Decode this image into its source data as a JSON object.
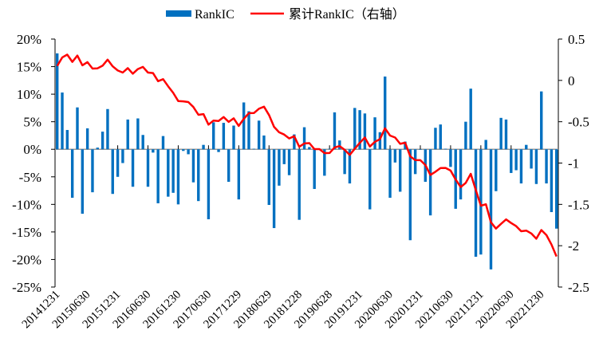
{
  "chart_data": {
    "type": "bar+line",
    "title": "",
    "legend": {
      "position": "top",
      "entries": [
        "RankIC",
        "累计RankIC（右轴）"
      ]
    },
    "colors": {
      "bar": "#0070C0",
      "line": "#FF0000",
      "axis": "#000000",
      "zero_line": "#999999"
    },
    "x_tick_labels": [
      "20141231",
      "20150630",
      "20151231",
      "20160630",
      "20161230",
      "20170630",
      "20171229",
      "20180629",
      "20181228",
      "20190628",
      "20191231",
      "20200630",
      "20201231",
      "20210630",
      "20211231",
      "20220630",
      "20221230"
    ],
    "x_tick_every": 6,
    "left_axis": {
      "ylim": [
        -25,
        20
      ],
      "ticks": [
        20,
        15,
        10,
        5,
        0,
        -5,
        -10,
        -15,
        -20,
        -25
      ],
      "tick_labels": [
        "20%",
        "15%",
        "10%",
        "5%",
        "0%",
        "-5%",
        "-10%",
        "-15%",
        "-20%",
        "-25%"
      ],
      "unit": "%"
    },
    "right_axis": {
      "ylim": [
        -2.5,
        0.5
      ],
      "ticks": [
        0.5,
        0,
        -0.5,
        -1,
        -1.5,
        -2,
        -2.5
      ],
      "tick_labels": [
        "0.5",
        "0",
        "-0.5",
        "-1",
        "-1.5",
        "-2",
        "-2.5"
      ]
    },
    "series": [
      {
        "name": "RankIC",
        "type": "bar",
        "axis": "left",
        "values": [
          17.4,
          10.3,
          3.5,
          -8.8,
          7.6,
          -11.7,
          3.8,
          -7.8,
          0.3,
          3.2,
          7.3,
          -8.1,
          -5.0,
          -2.5,
          5.4,
          -6.8,
          5.6,
          2.6,
          -6.8,
          -0.6,
          -9.8,
          2.4,
          -8.6,
          -7.9,
          -10.0,
          -0.3,
          -0.9,
          -6.0,
          -9.4,
          0.8,
          -12.7,
          4.9,
          -0.5,
          4.8,
          -5.9,
          4.3,
          -9.1,
          8.5,
          6.9,
          0.1,
          5.2,
          2.5,
          -10.1,
          -14.3,
          -6.6,
          -2.7,
          -4.7,
          2.7,
          -12.8,
          4.0,
          0.4,
          -7.2,
          0.0,
          -4.8,
          0.1,
          6.7,
          1.6,
          -4.5,
          -6.2,
          7.5,
          7.1,
          6.5,
          -10.9,
          5.8,
          3.1,
          13.2,
          -8.8,
          -2.4,
          -7.7,
          1.4,
          -16.5,
          -4.5,
          -0.1,
          -5.9,
          -12.0,
          3.9,
          4.5,
          0.1,
          -3.2,
          -10.8,
          -9.1,
          5.0,
          11.0,
          -19.5,
          -19.1,
          1.7,
          -21.8,
          -7.6,
          5.7,
          5.4,
          -4.3,
          -3.8,
          -6.2,
          0.8,
          -3.5,
          -6.3,
          10.5,
          -6.2,
          -11.4,
          -14.4
        ]
      },
      {
        "name": "累计RankIC（右轴）",
        "type": "line",
        "axis": "right",
        "values": [
          0.174,
          0.277,
          0.312,
          0.224,
          0.3,
          0.183,
          0.221,
          0.143,
          0.146,
          0.178,
          0.251,
          0.17,
          0.12,
          0.095,
          0.149,
          0.081,
          0.137,
          0.163,
          0.095,
          0.089,
          -0.009,
          0.015,
          -0.071,
          -0.15,
          -0.25,
          -0.253,
          -0.262,
          -0.322,
          -0.416,
          -0.408,
          -0.535,
          -0.486,
          -0.491,
          -0.443,
          -0.502,
          -0.459,
          -0.55,
          -0.465,
          -0.396,
          -0.395,
          -0.343,
          -0.318,
          -0.419,
          -0.562,
          -0.628,
          -0.655,
          -0.702,
          -0.675,
          -0.803,
          -0.763,
          -0.759,
          -0.831,
          -0.831,
          -0.879,
          -0.878,
          -0.811,
          -0.795,
          -0.84,
          -0.902,
          -0.827,
          -0.756,
          -0.691,
          -0.8,
          -0.742,
          -0.711,
          -0.579,
          -0.667,
          -0.691,
          -0.768,
          -0.754,
          -0.919,
          -0.964,
          -0.965,
          -1.024,
          -1.144,
          -1.105,
          -1.06,
          -1.059,
          -1.091,
          -1.199,
          -1.29,
          -1.24,
          -1.13,
          -1.325,
          -1.516,
          -1.499,
          -1.717,
          -1.793,
          -1.736,
          -1.682,
          -1.725,
          -1.763,
          -1.825,
          -1.817,
          -1.852,
          -1.915,
          -1.81,
          -1.872,
          -1.986,
          -2.13
        ]
      }
    ]
  }
}
